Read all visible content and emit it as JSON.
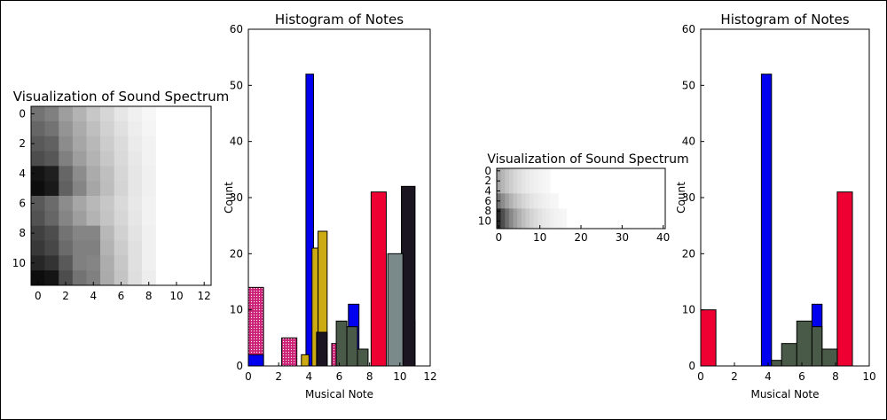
{
  "chart_data": [
    {
      "id": "heatmap-left",
      "type": "heatmap",
      "title": "Visualization of Sound Spectrum",
      "xlim": [
        -0.5,
        12.5
      ],
      "ylim": [
        11.5,
        -0.5
      ],
      "xticks": [
        0,
        2,
        4,
        6,
        8,
        10,
        12
      ],
      "yticks": [
        0,
        2,
        4,
        6,
        8,
        10
      ],
      "colormap": "gray_r",
      "values": [
        [
          0.55,
          0.5,
          0.38,
          0.3,
          0.22,
          0.16,
          0.1,
          0.06,
          0.03,
          0,
          0,
          0,
          0
        ],
        [
          0.6,
          0.55,
          0.42,
          0.33,
          0.25,
          0.18,
          0.12,
          0.07,
          0.04,
          0,
          0,
          0,
          0
        ],
        [
          0.65,
          0.62,
          0.45,
          0.35,
          0.28,
          0.2,
          0.14,
          0.08,
          0.05,
          0,
          0,
          0,
          0
        ],
        [
          0.7,
          0.66,
          0.5,
          0.38,
          0.3,
          0.22,
          0.15,
          0.09,
          0.05,
          0,
          0,
          0,
          0
        ],
        [
          0.92,
          0.88,
          0.6,
          0.45,
          0.33,
          0.25,
          0.16,
          0.1,
          0.06,
          0,
          0,
          0,
          0
        ],
        [
          0.95,
          0.9,
          0.62,
          0.48,
          0.35,
          0.26,
          0.17,
          0.1,
          0.06,
          0,
          0,
          0,
          0
        ],
        [
          0.65,
          0.58,
          0.45,
          0.35,
          0.28,
          0.22,
          0.15,
          0.09,
          0.05,
          0,
          0,
          0,
          0
        ],
        [
          0.68,
          0.6,
          0.48,
          0.38,
          0.3,
          0.23,
          0.16,
          0.1,
          0.05,
          0,
          0,
          0,
          0
        ],
        [
          0.75,
          0.7,
          0.55,
          0.48,
          0.48,
          0.28,
          0.18,
          0.11,
          0.06,
          0,
          0,
          0,
          0
        ],
        [
          0.78,
          0.72,
          0.58,
          0.5,
          0.5,
          0.3,
          0.2,
          0.12,
          0.06,
          0,
          0,
          0,
          0
        ],
        [
          0.85,
          0.8,
          0.65,
          0.5,
          0.48,
          0.32,
          0.22,
          0.12,
          0.06,
          0,
          0,
          0,
          0
        ],
        [
          0.95,
          0.92,
          0.7,
          0.55,
          0.5,
          0.33,
          0.23,
          0.13,
          0.07,
          0,
          0,
          0,
          0
        ]
      ]
    },
    {
      "id": "hist-left",
      "type": "bar",
      "title": "Histogram of Notes",
      "xlabel": "Musical Note",
      "ylabel": "Count",
      "xlim": [
        0,
        12
      ],
      "ylim": [
        0,
        60
      ],
      "xticks": [
        0,
        2,
        4,
        6,
        8,
        10,
        12
      ],
      "yticks": [
        0,
        10,
        20,
        30,
        40,
        50,
        60
      ],
      "series": [
        {
          "color": "#cc2277",
          "hatch": true,
          "bars": [
            [
              0,
              1,
              14
            ],
            [
              2.2,
              3.2,
              5
            ],
            [
              3.8,
              4.8,
              1
            ],
            [
              5.5,
              6.5,
              4
            ],
            [
              6.5,
              7.5,
              1
            ],
            [
              9.5,
              10.5,
              5
            ]
          ]
        },
        {
          "color": "#0000ee",
          "bars": [
            [
              0,
              1,
              2
            ],
            [
              3.8,
              4.3,
              52
            ],
            [
              4.5,
              5.2,
              2
            ],
            [
              6.6,
              7.3,
              11
            ],
            [
              10.3,
              11,
              8
            ]
          ]
        },
        {
          "color": "#ccaa11",
          "bars": [
            [
              3.5,
              4,
              2
            ],
            [
              4.2,
              4.6,
              21
            ],
            [
              4.6,
              5.2,
              24
            ]
          ]
        },
        {
          "color": "#1a1520",
          "bars": [
            [
              4.5,
              5.2,
              6
            ],
            [
              10.1,
              11,
              32
            ]
          ]
        },
        {
          "color": "#4a5a48",
          "bars": [
            [
              5.8,
              6.5,
              8
            ],
            [
              6.5,
              7.2,
              7
            ],
            [
              7.2,
              7.9,
              3
            ]
          ]
        },
        {
          "color": "#ee0033",
          "bars": [
            [
              8.1,
              9.1,
              31
            ]
          ]
        },
        {
          "color": "#7a8a8a",
          "bars": [
            [
              9.2,
              10.2,
              20
            ]
          ]
        }
      ]
    },
    {
      "id": "heatmap-small",
      "type": "heatmap",
      "title": "Visualization of Sound Spectrum",
      "xlim": [
        -0.5,
        40.5
      ],
      "ylim": [
        11.5,
        -0.5
      ],
      "xticks": [
        0,
        10,
        20,
        30,
        40
      ],
      "yticks": [
        0,
        2,
        4,
        6,
        8,
        10
      ],
      "colormap": "gray_r"
    },
    {
      "id": "hist-right",
      "type": "bar",
      "title": "Histogram of Notes",
      "xlabel": "Musical Note",
      "ylabel": "Count",
      "xlim": [
        0,
        10
      ],
      "ylim": [
        0,
        60
      ],
      "xticks": [
        0,
        2,
        4,
        6,
        8,
        10
      ],
      "yticks": [
        0,
        10,
        20,
        30,
        40,
        50,
        60
      ],
      "series": [
        {
          "color": "#ee0033",
          "bars": [
            [
              0,
              0.9,
              10
            ],
            [
              8.1,
              9.0,
              31
            ]
          ]
        },
        {
          "color": "#0000ee",
          "bars": [
            [
              3.6,
              4.2,
              52
            ],
            [
              6.6,
              7.2,
              11
            ]
          ]
        },
        {
          "color": "#4a5a48",
          "bars": [
            [
              4.2,
              4.8,
              1
            ],
            [
              4.8,
              5.7,
              4
            ],
            [
              5.7,
              6.6,
              8
            ],
            [
              6.6,
              7.2,
              7
            ],
            [
              7.2,
              8.1,
              3
            ]
          ]
        }
      ]
    }
  ]
}
